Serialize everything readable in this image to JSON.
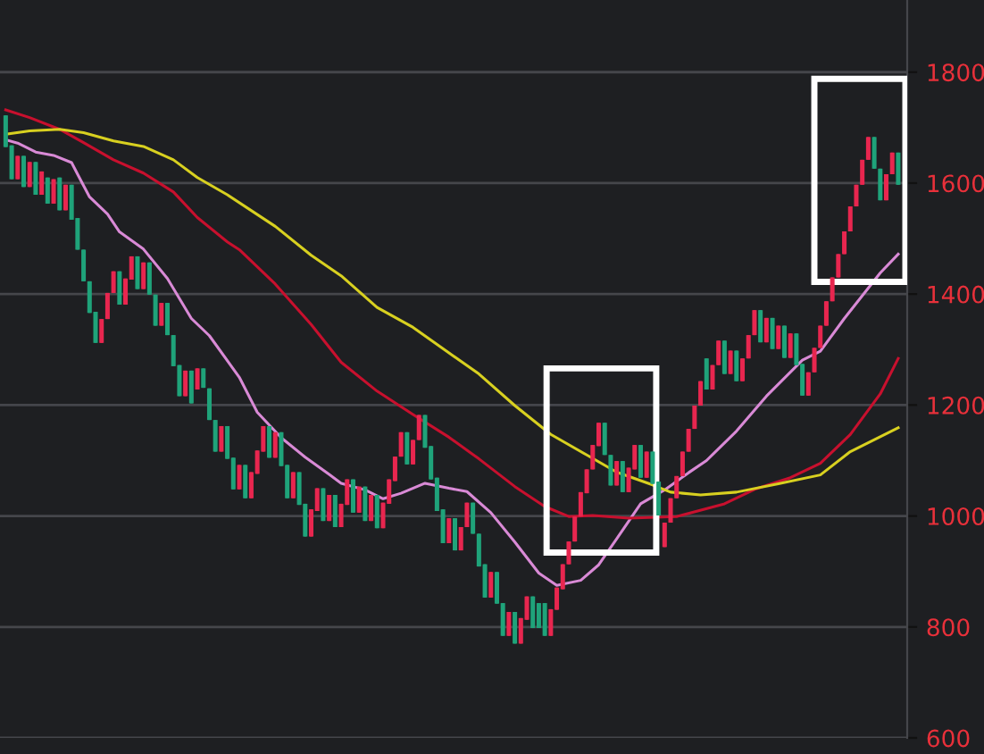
{
  "chart_data": {
    "type": "candlestick",
    "categories": [
      null,
      null,
      null,
      null,
      null,
      null,
      null,
      null,
      null,
      null,
      null,
      null,
      null,
      null,
      null,
      null,
      null,
      null,
      null,
      null,
      null,
      null,
      null,
      null,
      null,
      null,
      null,
      null,
      null,
      null,
      null,
      null,
      null,
      null,
      null,
      null,
      null,
      null,
      null,
      null,
      null,
      null,
      null,
      null,
      null,
      null,
      null,
      null,
      null,
      null,
      null,
      null,
      null,
      null,
      null,
      null,
      null,
      null,
      null,
      null,
      null,
      null,
      null,
      null,
      null,
      null,
      null,
      null,
      null,
      null,
      null,
      null,
      null,
      null,
      null,
      null,
      null,
      null,
      null,
      null,
      null,
      null,
      null,
      null,
      null,
      null,
      null,
      null,
      null,
      null,
      null,
      null,
      null,
      null,
      null,
      null,
      null,
      null,
      null,
      null,
      null,
      null,
      null,
      null,
      null,
      null,
      null,
      null,
      null,
      null,
      null,
      null,
      null,
      null,
      null,
      null,
      null,
      null,
      null,
      null,
      null,
      null,
      null,
      null,
      null,
      null,
      null,
      null,
      null,
      null,
      null,
      null,
      null,
      null,
      null,
      null,
      null,
      null,
      null,
      null,
      null,
      null,
      null,
      null,
      null,
      null,
      null,
      null,
      null,
      null
    ],
    "ohlc": [
      [
        1722,
        1722,
        1665,
        1665
      ],
      [
        1668,
        1668,
        1607,
        1607
      ],
      [
        1607,
        1649,
        1607,
        1649
      ],
      [
        1649,
        1649,
        1593,
        1593
      ],
      [
        1593,
        1638,
        1593,
        1638
      ],
      [
        1638,
        1638,
        1579,
        1579
      ],
      [
        1579,
        1621,
        1579,
        1621
      ],
      [
        1610,
        1610,
        1563,
        1563
      ],
      [
        1563,
        1607,
        1563,
        1607
      ],
      [
        1610,
        1610,
        1551,
        1551
      ],
      [
        1551,
        1597,
        1551,
        1597
      ],
      [
        1597,
        1597,
        1534,
        1534
      ],
      [
        1537,
        1537,
        1480,
        1480
      ],
      [
        1480,
        1480,
        1423,
        1423
      ],
      [
        1423,
        1423,
        1366,
        1366
      ],
      [
        1368,
        1368,
        1312,
        1312
      ],
      [
        1312,
        1355,
        1312,
        1355
      ],
      [
        1355,
        1402,
        1355,
        1402
      ],
      [
        1402,
        1441,
        1402,
        1441
      ],
      [
        1441,
        1441,
        1381,
        1381
      ],
      [
        1381,
        1428,
        1381,
        1428
      ],
      [
        1426,
        1468,
        1426,
        1468
      ],
      [
        1468,
        1468,
        1409,
        1409
      ],
      [
        1409,
        1457,
        1409,
        1457
      ],
      [
        1457,
        1457,
        1399,
        1399
      ],
      [
        1399,
        1399,
        1343,
        1343
      ],
      [
        1343,
        1384,
        1343,
        1384
      ],
      [
        1384,
        1384,
        1326,
        1326
      ],
      [
        1326,
        1326,
        1270,
        1270
      ],
      [
        1272,
        1272,
        1216,
        1216
      ],
      [
        1216,
        1262,
        1216,
        1262
      ],
      [
        1262,
        1262,
        1203,
        1203
      ],
      [
        1228,
        1266,
        1228,
        1266
      ],
      [
        1266,
        1266,
        1231,
        1231
      ],
      [
        1230,
        1230,
        1173,
        1173
      ],
      [
        1173,
        1173,
        1116,
        1116
      ],
      [
        1116,
        1162,
        1116,
        1162
      ],
      [
        1162,
        1162,
        1103,
        1103
      ],
      [
        1105,
        1105,
        1048,
        1048
      ],
      [
        1048,
        1092,
        1048,
        1092
      ],
      [
        1092,
        1092,
        1032,
        1032
      ],
      [
        1032,
        1079,
        1032,
        1079
      ],
      [
        1076,
        1118,
        1076,
        1118
      ],
      [
        1116,
        1162,
        1116,
        1162
      ],
      [
        1162,
        1162,
        1105,
        1105
      ],
      [
        1105,
        1151,
        1105,
        1151
      ],
      [
        1151,
        1151,
        1090,
        1090
      ],
      [
        1092,
        1092,
        1032,
        1032
      ],
      [
        1032,
        1079,
        1032,
        1079
      ],
      [
        1079,
        1079,
        1020,
        1020
      ],
      [
        1022,
        1022,
        963,
        963
      ],
      [
        963,
        1012,
        963,
        1012
      ],
      [
        1009,
        1050,
        1009,
        1050
      ],
      [
        1050,
        1050,
        991,
        991
      ],
      [
        991,
        1038,
        991,
        1038
      ],
      [
        1038,
        1038,
        980,
        980
      ],
      [
        980,
        1022,
        980,
        1022
      ],
      [
        1020,
        1066,
        1020,
        1066
      ],
      [
        1066,
        1066,
        1006,
        1006
      ],
      [
        1006,
        1053,
        1006,
        1053
      ],
      [
        1053,
        1053,
        991,
        991
      ],
      [
        991,
        1038,
        991,
        1038
      ],
      [
        1038,
        1038,
        978,
        978
      ],
      [
        978,
        1024,
        978,
        1024
      ],
      [
        1022,
        1066,
        1022,
        1066
      ],
      [
        1063,
        1107,
        1063,
        1107
      ],
      [
        1107,
        1151,
        1107,
        1151
      ],
      [
        1151,
        1151,
        1093,
        1093
      ],
      [
        1093,
        1137,
        1093,
        1137
      ],
      [
        1137,
        1182,
        1137,
        1182
      ],
      [
        1182,
        1182,
        1123,
        1123
      ],
      [
        1126,
        1126,
        1066,
        1066
      ],
      [
        1069,
        1069,
        1009,
        1009
      ],
      [
        1012,
        1012,
        951,
        951
      ],
      [
        951,
        996,
        951,
        996
      ],
      [
        996,
        996,
        938,
        938
      ],
      [
        938,
        980,
        938,
        980
      ],
      [
        980,
        1024,
        980,
        1024
      ],
      [
        1024,
        1024,
        968,
        968
      ],
      [
        968,
        968,
        909,
        909
      ],
      [
        913,
        913,
        853,
        853
      ],
      [
        853,
        899,
        853,
        899
      ],
      [
        899,
        899,
        842,
        842
      ],
      [
        843,
        843,
        784,
        784
      ],
      [
        784,
        827,
        784,
        827
      ],
      [
        827,
        827,
        770,
        770
      ],
      [
        770,
        816,
        770,
        816
      ],
      [
        813,
        855,
        813,
        855
      ],
      [
        855,
        855,
        798,
        798
      ],
      [
        843,
        843,
        798,
        798
      ],
      [
        843,
        843,
        784,
        784
      ],
      [
        784,
        832,
        784,
        832
      ],
      [
        831,
        871,
        831,
        871
      ],
      [
        868,
        913,
        868,
        913
      ],
      [
        913,
        954,
        913,
        954
      ],
      [
        954,
        999,
        954,
        999
      ],
      [
        999,
        1043,
        999,
        1043
      ],
      [
        1041,
        1084,
        1041,
        1084
      ],
      [
        1084,
        1128,
        1084,
        1128
      ],
      [
        1126,
        1168,
        1126,
        1168
      ],
      [
        1168,
        1168,
        1110,
        1110
      ],
      [
        1110,
        1110,
        1055,
        1055
      ],
      [
        1055,
        1099,
        1055,
        1099
      ],
      [
        1099,
        1099,
        1043,
        1043
      ],
      [
        1043,
        1087,
        1043,
        1087
      ],
      [
        1084,
        1128,
        1084,
        1128
      ],
      [
        1128,
        1128,
        1069,
        1069
      ],
      [
        1069,
        1116,
        1069,
        1116
      ],
      [
        1116,
        1116,
        1058,
        1058
      ],
      [
        1062,
        1062,
        1001,
        1001
      ],
      [
        944,
        988,
        944,
        988
      ],
      [
        988,
        1032,
        988,
        1032
      ],
      [
        1032,
        1072,
        1032,
        1072
      ],
      [
        1072,
        1116,
        1072,
        1116
      ],
      [
        1116,
        1157,
        1116,
        1157
      ],
      [
        1157,
        1199,
        1157,
        1199
      ],
      [
        1199,
        1243,
        1199,
        1243
      ],
      [
        1284,
        1284,
        1228,
        1228
      ],
      [
        1228,
        1272,
        1228,
        1272
      ],
      [
        1272,
        1316,
        1272,
        1316
      ],
      [
        1316,
        1316,
        1256,
        1256
      ],
      [
        1256,
        1298,
        1256,
        1298
      ],
      [
        1298,
        1298,
        1243,
        1243
      ],
      [
        1243,
        1284,
        1243,
        1284
      ],
      [
        1284,
        1326,
        1284,
        1326
      ],
      [
        1326,
        1371,
        1326,
        1371
      ],
      [
        1371,
        1371,
        1313,
        1313
      ],
      [
        1313,
        1357,
        1313,
        1357
      ],
      [
        1357,
        1357,
        1301,
        1301
      ],
      [
        1301,
        1343,
        1301,
        1343
      ],
      [
        1343,
        1343,
        1285,
        1285
      ],
      [
        1285,
        1329,
        1285,
        1329
      ],
      [
        1329,
        1329,
        1272,
        1272
      ],
      [
        1274,
        1274,
        1217,
        1217
      ],
      [
        1217,
        1259,
        1217,
        1259
      ],
      [
        1259,
        1303,
        1259,
        1303
      ],
      [
        1303,
        1343,
        1303,
        1343
      ],
      [
        1343,
        1387,
        1343,
        1387
      ],
      [
        1387,
        1430,
        1387,
        1430
      ],
      [
        1430,
        1472,
        1430,
        1472
      ],
      [
        1472,
        1513,
        1472,
        1513
      ],
      [
        1513,
        1558,
        1513,
        1558
      ],
      [
        1558,
        1597,
        1558,
        1597
      ],
      [
        1597,
        1642,
        1597,
        1642
      ],
      [
        1642,
        1683,
        1642,
        1683
      ],
      [
        1683,
        1683,
        1626,
        1626
      ],
      [
        1626,
        1626,
        1569,
        1569
      ],
      [
        1569,
        1616,
        1569,
        1616
      ],
      [
        1616,
        1655,
        1616,
        1655
      ],
      [
        1655,
        1655,
        1597,
        1597
      ]
    ],
    "colors": [
      "#1fa37a",
      "#1fa37a",
      "#e8264f",
      "#1fa37a",
      "#e8264f",
      "#1fa37a",
      "#e8264f",
      "#1fa37a",
      "#e8264f",
      "#1fa37a",
      "#e8264f",
      "#1fa37a",
      "#1fa37a",
      "#1fa37a",
      "#1fa37a",
      "#1fa37a",
      "#e8264f",
      "#e8264f",
      "#e8264f",
      "#1fa37a",
      "#e8264f",
      "#e8264f",
      "#1fa37a",
      "#e8264f",
      "#1fa37a",
      "#1fa37a",
      "#e8264f",
      "#1fa37a",
      "#1fa37a",
      "#1fa37a",
      "#e8264f",
      "#1fa37a",
      "#e8264f",
      "#1fa37a",
      "#1fa37a",
      "#1fa37a",
      "#e8264f",
      "#1fa37a",
      "#1fa37a",
      "#e8264f",
      "#1fa37a",
      "#e8264f",
      "#e8264f",
      "#e8264f",
      "#1fa37a",
      "#e8264f",
      "#1fa37a",
      "#1fa37a",
      "#e8264f",
      "#1fa37a",
      "#1fa37a",
      "#e8264f",
      "#e8264f",
      "#1fa37a",
      "#e8264f",
      "#1fa37a",
      "#e8264f",
      "#e8264f",
      "#1fa37a",
      "#e8264f",
      "#1fa37a",
      "#e8264f",
      "#1fa37a",
      "#e8264f",
      "#e8264f",
      "#e8264f",
      "#e8264f",
      "#1fa37a",
      "#e8264f",
      "#e8264f",
      "#1fa37a",
      "#1fa37a",
      "#1fa37a",
      "#1fa37a",
      "#e8264f",
      "#1fa37a",
      "#e8264f",
      "#e8264f",
      "#1fa37a",
      "#1fa37a",
      "#1fa37a",
      "#e8264f",
      "#1fa37a",
      "#1fa37a",
      "#e8264f",
      "#1fa37a",
      "#e8264f",
      "#e8264f",
      "#1fa37a",
      "#1fa37a",
      "#1fa37a",
      "#e8264f",
      "#e8264f",
      "#e8264f",
      "#e8264f",
      "#e8264f",
      "#e8264f",
      "#e8264f",
      "#e8264f",
      "#e8264f",
      "#1fa37a",
      "#1fa37a",
      "#e8264f",
      "#1fa37a",
      "#e8264f",
      "#e8264f",
      "#1fa37a",
      "#e8264f",
      "#1fa37a",
      "#1fa37a",
      "#e8264f",
      "#e8264f",
      "#e8264f",
      "#e8264f",
      "#e8264f",
      "#e8264f",
      "#e8264f",
      "#1fa37a",
      "#e8264f",
      "#e8264f",
      "#1fa37a",
      "#e8264f",
      "#1fa37a",
      "#e8264f",
      "#e8264f",
      "#e8264f",
      "#1fa37a",
      "#e8264f",
      "#1fa37a",
      "#e8264f",
      "#1fa37a",
      "#e8264f",
      "#1fa37a",
      "#1fa37a",
      "#e8264f",
      "#e8264f",
      "#e8264f",
      "#e8264f",
      "#e8264f",
      "#e8264f",
      "#e8264f",
      "#e8264f",
      "#e8264f",
      "#e8264f",
      "#e8264f",
      "#1fa37a",
      "#1fa37a",
      "#e8264f",
      "#e8264f",
      "#1fa37a"
    ],
    "series": [
      {
        "type": "line",
        "color": "#d98ad6",
        "values": [
          1678,
          null,
          1672,
          null,
          null,
          1656,
          null,
          null,
          1650,
          null,
          null,
          1637,
          1616,
          null,
          1575,
          null,
          null,
          1544,
          null,
          1512,
          null,
          null,
          null,
          1481,
          null,
          null,
          null,
          1428,
          null,
          null,
          null,
          1356,
          null,
          null,
          1325,
          null,
          null,
          null,
          null,
          1250,
          null,
          null,
          1187,
          null,
          null,
          null,
          1141,
          null,
          null,
          null,
          1106,
          null,
          null,
          null,
          1075,
          null,
          1059,
          null,
          null,
          null,
          1047,
          null,
          null,
          1031,
          null,
          null,
          1041,
          null,
          null,
          null,
          1059,
          null,
          null,
          null,
          1050,
          null,
          null,
          1044,
          null,
          null,
          null,
          1006,
          null,
          null,
          null,
          953,
          null,
          null,
          null,
          897,
          null,
          null,
          875,
          null,
          null,
          null,
          884,
          null,
          null,
          912,
          null,
          null,
          959,
          null,
          null,
          null,
          1022,
          null,
          null,
          null,
          1047,
          null,
          null,
          null,
          1078,
          null,
          null,
          1100,
          null,
          null,
          null,
          null,
          1153,
          null,
          null,
          null,
          null,
          1216,
          null,
          null,
          null,
          null,
          null,
          1281,
          null,
          null,
          1297,
          null,
          null,
          null,
          1356,
          null,
          null,
          null,
          null,
          null,
          1438,
          null,
          null,
          1472
        ]
      },
      {
        "type": "line",
        "color": "#c8102e",
        "values": [
          1732,
          null,
          null,
          null,
          1718,
          null,
          null,
          null,
          null,
          1697,
          null,
          null,
          null,
          1673,
          null,
          null,
          null,
          null,
          1642,
          null,
          null,
          null,
          null,
          1618,
          null,
          null,
          null,
          null,
          1584,
          null,
          null,
          null,
          1538,
          null,
          null,
          null,
          null,
          1494,
          null,
          1480,
          null,
          null,
          null,
          null,
          null,
          1418,
          null,
          null,
          null,
          null,
          null,
          1345,
          null,
          null,
          null,
          null,
          1277,
          null,
          null,
          null,
          null,
          null,
          1225,
          null,
          null,
          null,
          null,
          null,
          1183,
          null,
          null,
          null,
          null,
          null,
          1142,
          null,
          null,
          null,
          null,
          1103,
          null,
          null,
          null,
          null,
          null,
          1053,
          null,
          null,
          null,
          null,
          1017,
          null,
          null,
          null,
          999,
          null,
          null,
          null,
          1001,
          null,
          null,
          null,
          null,
          null,
          996,
          null,
          null,
          null,
          null,
          null,
          null,
          null,
          999,
          null,
          null,
          null,
          null,
          null,
          null,
          null,
          1022,
          null,
          null,
          null,
          null,
          1048,
          null,
          null,
          null,
          null,
          null,
          1069,
          null,
          null,
          null,
          null,
          1095,
          null,
          null,
          null,
          null,
          1147,
          null,
          null,
          null,
          null,
          1220,
          null,
          null,
          1284
        ]
      },
      {
        "type": "line",
        "color": "#d8d020",
        "values": [
          1688,
          null,
          null,
          null,
          1694,
          null,
          null,
          null,
          null,
          1697,
          null,
          null,
          null,
          1691,
          null,
          null,
          null,
          null,
          1676,
          null,
          null,
          null,
          null,
          1666,
          null,
          null,
          null,
          null,
          1642,
          null,
          null,
          null,
          1610,
          null,
          null,
          null,
          null,
          1579,
          null,
          null,
          null,
          null,
          null,
          null,
          null,
          1522,
          null,
          null,
          null,
          null,
          null,
          1470,
          null,
          null,
          null,
          null,
          1433,
          null,
          null,
          null,
          null,
          null,
          1376,
          null,
          null,
          null,
          null,
          null,
          1340,
          null,
          null,
          null,
          null,
          null,
          1294,
          null,
          null,
          null,
          null,
          1256,
          null,
          null,
          null,
          null,
          null,
          1199,
          null,
          null,
          null,
          null,
          null,
          1147,
          null,
          null,
          null,
          null,
          null,
          1110,
          null,
          null,
          null,
          null,
          1079,
          null,
          null,
          null,
          null,
          null,
          1056,
          null,
          null,
          1043,
          null,
          null,
          null,
          null,
          1038,
          null,
          null,
          null,
          null,
          null,
          1043,
          null,
          null,
          null,
          null,
          null,
          null,
          1058,
          null,
          null,
          null,
          null,
          null,
          null,
          1074,
          null,
          null,
          null,
          null,
          1116,
          null,
          null,
          null,
          null,
          null,
          null,
          null,
          1159
        ]
      }
    ],
    "ylim": [
      600,
      1930
    ],
    "yticks": [
      600,
      800,
      1000,
      1200,
      1400,
      1600,
      1800
    ],
    "grid": "y",
    "tick_labels": "y",
    "legend": false
  }
}
